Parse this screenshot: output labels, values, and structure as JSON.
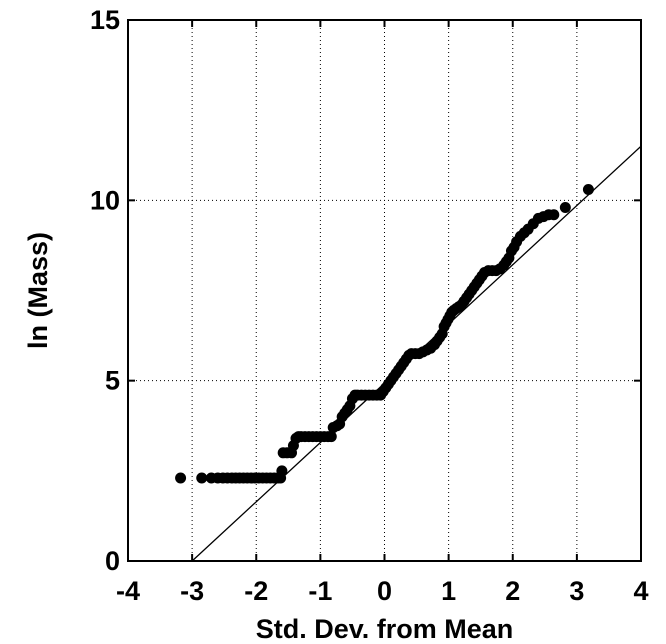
{
  "chart_data": {
    "type": "scatter",
    "title": "",
    "xlabel": "Std. Dev. from Mean",
    "ylabel": "ln (Mass)",
    "xlim": [
      -4,
      4
    ],
    "ylim": [
      0,
      15
    ],
    "xticks": [
      -4,
      -3,
      -2,
      -1,
      0,
      1,
      2,
      3,
      4
    ],
    "yticks": [
      0,
      5,
      10,
      15
    ],
    "xtick_labels": [
      "-4",
      "-3",
      "-2",
      "-1",
      "0",
      "1",
      "2",
      "3",
      "4"
    ],
    "ytick_labels": [
      "0",
      "5",
      "10",
      "15"
    ],
    "grid": true,
    "legend": "none",
    "colors": {
      "points": "#000000",
      "line": "#000000",
      "grid": "#000000"
    },
    "fit_line": {
      "x": [
        -3.0,
        4.0
      ],
      "y": [
        0.0,
        11.5
      ]
    },
    "series": [
      {
        "points": [
          [
            -3.18,
            2.3
          ],
          [
            -2.85,
            2.3
          ],
          [
            -2.7,
            2.3
          ],
          [
            -2.6,
            2.3
          ],
          [
            -2.52,
            2.3
          ],
          [
            -2.45,
            2.3
          ],
          [
            -2.38,
            2.3
          ],
          [
            -2.32,
            2.3
          ],
          [
            -2.26,
            2.3
          ],
          [
            -2.2,
            2.3
          ],
          [
            -2.14,
            2.3
          ],
          [
            -2.08,
            2.3
          ],
          [
            -2.02,
            2.3
          ],
          [
            -1.96,
            2.3
          ],
          [
            -1.9,
            2.3
          ],
          [
            -1.84,
            2.3
          ],
          [
            -1.78,
            2.3
          ],
          [
            -1.72,
            2.3
          ],
          [
            -1.66,
            2.3
          ],
          [
            -1.62,
            2.3
          ],
          [
            -1.6,
            2.5
          ],
          [
            -1.58,
            3.0
          ],
          [
            -1.52,
            3.0
          ],
          [
            -1.45,
            3.0
          ],
          [
            -1.42,
            3.2
          ],
          [
            -1.38,
            3.4
          ],
          [
            -1.34,
            3.45
          ],
          [
            -1.3,
            3.45
          ],
          [
            -1.24,
            3.45
          ],
          [
            -1.18,
            3.45
          ],
          [
            -1.12,
            3.45
          ],
          [
            -1.06,
            3.45
          ],
          [
            -1.0,
            3.45
          ],
          [
            -0.94,
            3.45
          ],
          [
            -0.88,
            3.45
          ],
          [
            -0.83,
            3.45
          ],
          [
            -0.8,
            3.7
          ],
          [
            -0.74,
            3.75
          ],
          [
            -0.7,
            3.8
          ],
          [
            -0.66,
            4.0
          ],
          [
            -0.62,
            4.1
          ],
          [
            -0.58,
            4.2
          ],
          [
            -0.54,
            4.3
          ],
          [
            -0.5,
            4.5
          ],
          [
            -0.46,
            4.6
          ],
          [
            -0.42,
            4.6
          ],
          [
            -0.36,
            4.6
          ],
          [
            -0.3,
            4.6
          ],
          [
            -0.24,
            4.6
          ],
          [
            -0.18,
            4.6
          ],
          [
            -0.12,
            4.6
          ],
          [
            -0.06,
            4.6
          ],
          [
            -0.02,
            4.7
          ],
          [
            0.02,
            4.8
          ],
          [
            0.06,
            4.9
          ],
          [
            0.1,
            5.0
          ],
          [
            0.14,
            5.1
          ],
          [
            0.18,
            5.2
          ],
          [
            0.22,
            5.3
          ],
          [
            0.26,
            5.4
          ],
          [
            0.3,
            5.5
          ],
          [
            0.34,
            5.6
          ],
          [
            0.38,
            5.7
          ],
          [
            0.42,
            5.75
          ],
          [
            0.48,
            5.75
          ],
          [
            0.54,
            5.75
          ],
          [
            0.6,
            5.8
          ],
          [
            0.66,
            5.85
          ],
          [
            0.72,
            5.9
          ],
          [
            0.78,
            6.0
          ],
          [
            0.82,
            6.1
          ],
          [
            0.86,
            6.2
          ],
          [
            0.9,
            6.3
          ],
          [
            0.93,
            6.5
          ],
          [
            0.96,
            6.6
          ],
          [
            0.99,
            6.7
          ],
          [
            1.02,
            6.8
          ],
          [
            1.05,
            6.9
          ],
          [
            1.08,
            6.95
          ],
          [
            1.12,
            7.0
          ],
          [
            1.16,
            7.05
          ],
          [
            1.2,
            7.1
          ],
          [
            1.24,
            7.2
          ],
          [
            1.28,
            7.3
          ],
          [
            1.32,
            7.4
          ],
          [
            1.36,
            7.5
          ],
          [
            1.4,
            7.6
          ],
          [
            1.44,
            7.7
          ],
          [
            1.48,
            7.8
          ],
          [
            1.52,
            7.9
          ],
          [
            1.56,
            8.0
          ],
          [
            1.62,
            8.05
          ],
          [
            1.68,
            8.05
          ],
          [
            1.74,
            8.05
          ],
          [
            1.8,
            8.1
          ],
          [
            1.86,
            8.2
          ],
          [
            1.9,
            8.3
          ],
          [
            1.94,
            8.4
          ],
          [
            1.98,
            8.6
          ],
          [
            2.02,
            8.7
          ],
          [
            2.06,
            8.85
          ],
          [
            2.12,
            9.0
          ],
          [
            2.18,
            9.1
          ],
          [
            2.24,
            9.2
          ],
          [
            2.32,
            9.35
          ],
          [
            2.4,
            9.5
          ],
          [
            2.48,
            9.55
          ],
          [
            2.56,
            9.6
          ],
          [
            2.64,
            9.6
          ],
          [
            2.82,
            9.8
          ],
          [
            3.18,
            10.3
          ]
        ]
      }
    ]
  }
}
